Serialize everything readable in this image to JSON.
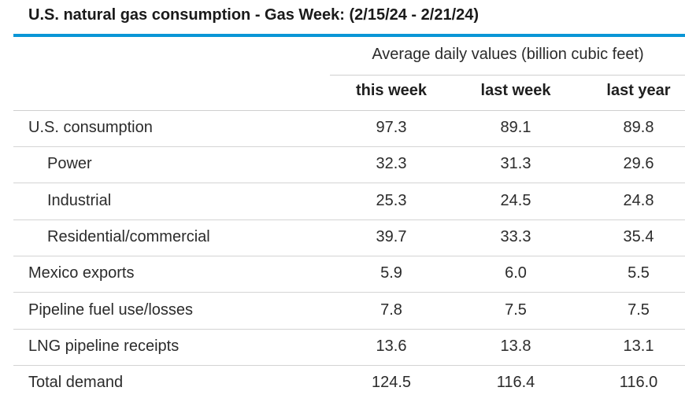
{
  "chart_data": {
    "type": "table",
    "title": "U.S. natural gas consumption - Gas Week: (2/15/24 - 2/21/24)",
    "group_header": "Average daily values (billion cubic feet)",
    "columns": [
      "this week",
      "last week",
      "last year"
    ],
    "rows": [
      {
        "label": "U.S. consumption",
        "indent": false,
        "values": [
          "97.3",
          "89.1",
          "89.8"
        ]
      },
      {
        "label": "Power",
        "indent": true,
        "values": [
          "32.3",
          "31.3",
          "29.6"
        ]
      },
      {
        "label": "Industrial",
        "indent": true,
        "values": [
          "25.3",
          "24.5",
          "24.8"
        ]
      },
      {
        "label": "Residential/commercial",
        "indent": true,
        "values": [
          "39.7",
          "33.3",
          "35.4"
        ]
      },
      {
        "label": "Mexico exports",
        "indent": false,
        "values": [
          "5.9",
          "6.0",
          "5.5"
        ]
      },
      {
        "label": "Pipeline fuel use/losses",
        "indent": false,
        "values": [
          "7.8",
          "7.5",
          "7.5"
        ]
      },
      {
        "label": "LNG pipeline receipts",
        "indent": false,
        "values": [
          "13.6",
          "13.8",
          "13.1"
        ]
      },
      {
        "label": "Total demand",
        "indent": false,
        "values": [
          "124.5",
          "116.4",
          "116.0"
        ]
      }
    ]
  },
  "colors": {
    "accent_rule": "#0a96d6",
    "grid_line": "#d4d4d4",
    "text": "#2b2b2b"
  }
}
